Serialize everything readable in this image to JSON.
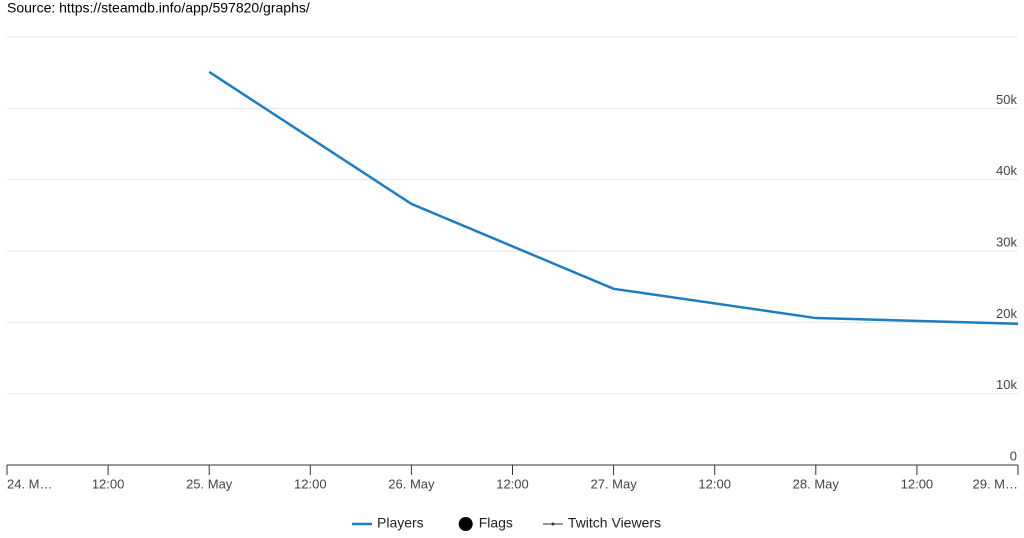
{
  "source": "Source: https://steamdb.info/app/597820/graphs/",
  "chart_data": {
    "type": "line",
    "xticks": [
      "24. M…",
      "12:00",
      "25. May",
      "12:00",
      "26. May",
      "12:00",
      "27. May",
      "12:00",
      "28. May",
      "12:00",
      "29. M…"
    ],
    "x": [
      "25. May",
      "26. May",
      "27. May",
      "28. May",
      "29. M…"
    ],
    "series": [
      {
        "name": "Players",
        "color": "#1c7dc0",
        "values": [
          55100,
          36600,
          24700,
          20600,
          19800
        ]
      }
    ],
    "ylim": [
      0,
      60000
    ],
    "yticks": [
      0,
      {
        "value": 10000,
        "label": "10k"
      },
      {
        "value": 20000,
        "label": "20k"
      },
      {
        "value": 30000,
        "label": "30k"
      },
      {
        "value": 40000,
        "label": "40k"
      },
      {
        "value": 50000,
        "label": "50k"
      }
    ],
    "grid": true,
    "legend": [
      {
        "name": "Players",
        "color": "#1c7dc0",
        "marker": "line"
      },
      {
        "name": "Flags",
        "color": "#000000",
        "marker": "circle"
      },
      {
        "name": "Twitch Viewers",
        "color": "#333333",
        "marker": "line-dot"
      }
    ]
  }
}
